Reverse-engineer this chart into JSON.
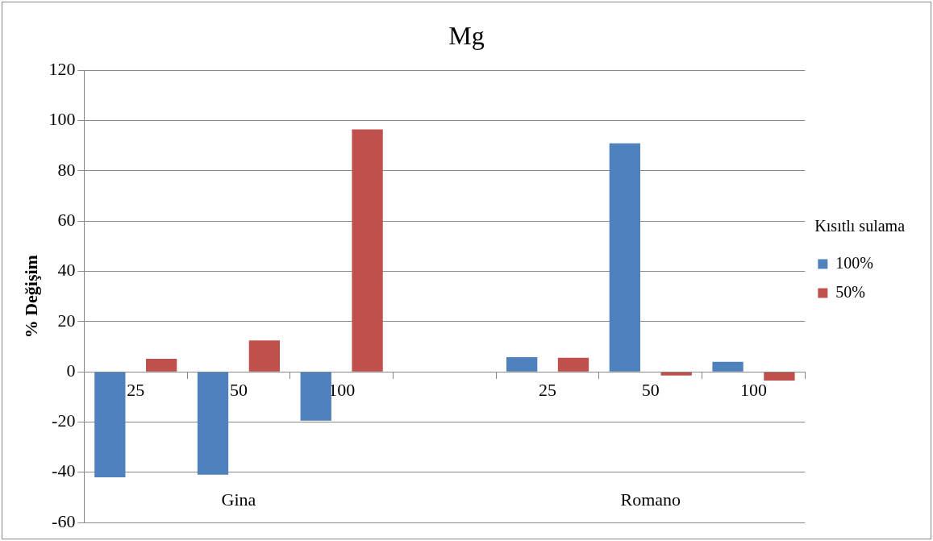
{
  "chart_data": {
    "type": "bar",
    "title": "Mg",
    "ylabel": "% Değişim",
    "legend_title": "Kısıtlı sulama",
    "categories": [
      "25",
      "50",
      "100",
      null,
      "25",
      "50",
      "100"
    ],
    "series": [
      {
        "name": "100%",
        "color": "#4f81bd",
        "values": [
          -42,
          -41,
          -19.5,
          null,
          5.8,
          91,
          4
        ]
      },
      {
        "name": "50%",
        "color": "#c0504d",
        "values": [
          5.2,
          12.5,
          96.5,
          null,
          5.6,
          -1.5,
          -3.5
        ]
      }
    ],
    "annotations": [
      "Gina",
      "Romano"
    ],
    "ylim": [
      -60,
      120
    ],
    "yticks": [
      -60,
      -40,
      -20,
      0,
      20,
      40,
      60,
      80,
      100,
      120
    ],
    "grid": "y",
    "legend": "right"
  }
}
